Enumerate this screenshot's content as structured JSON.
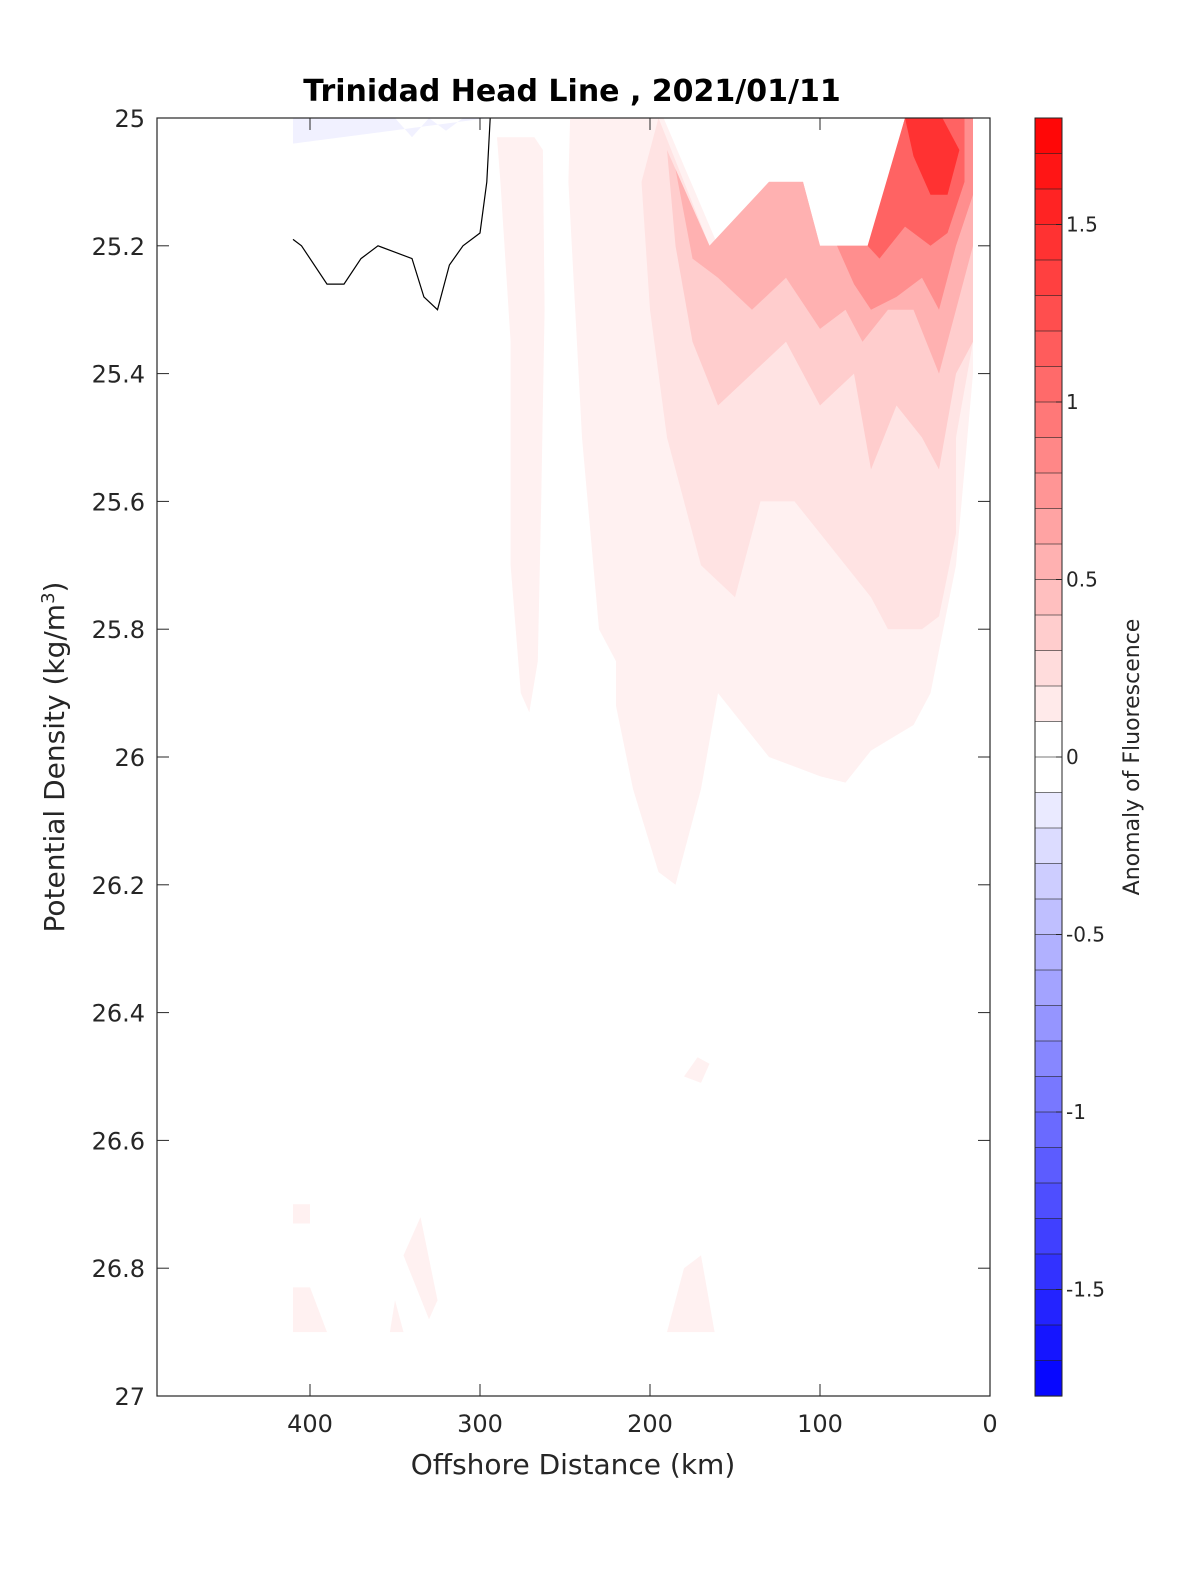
{
  "chart_data": {
    "type": "contourf",
    "title": "Trinidad Head Line , 2021/01/11",
    "xlabel": "Offshore Distance (km)",
    "ylabel_main": "Potential Density (kg/m",
    "ylabel_sup": "3",
    "ylabel_end": ")",
    "xlim": [
      490,
      0
    ],
    "ylim": [
      25,
      27
    ],
    "y_reversed": true,
    "x_ticks": [
      400,
      300,
      200,
      100,
      0
    ],
    "x_tick_labels": [
      "400",
      "300",
      "200",
      "100",
      "0"
    ],
    "y_ticks": [
      25,
      25.2,
      25.4,
      25.6,
      25.8,
      26,
      26.2,
      26.4,
      26.6,
      26.8,
      27
    ],
    "y_tick_labels": [
      "25",
      "25.2",
      "25.4",
      "25.6",
      "25.8",
      "26",
      "26.2",
      "26.4",
      "26.6",
      "26.8",
      "27"
    ],
    "grid": false,
    "colorbar": {
      "label": "Anomaly of Fluorescence",
      "range": [
        -1.8,
        1.8
      ],
      "levels": 36,
      "ticks": [
        1.5,
        1,
        0.5,
        0,
        -0.5,
        -1,
        -1.5
      ],
      "tick_labels": [
        "1.5",
        "1",
        "0.5",
        "0",
        "-0.5",
        "-1",
        "-1.5"
      ],
      "colormap": "blue-white-red",
      "low_color": "#0000ff",
      "mid_color": "#ffffff",
      "high_color": "#ff0000"
    },
    "regions": [
      {
        "level": 0.1,
        "points": [
          [
            290,
            25.03
          ],
          [
            288,
            25.1
          ],
          [
            282,
            25.35
          ],
          [
            282,
            25.7
          ],
          [
            276,
            25.9
          ],
          [
            271,
            25.93
          ],
          [
            266,
            25.85
          ],
          [
            264,
            25.6
          ],
          [
            262,
            25.3
          ],
          [
            263,
            25.05
          ],
          [
            268,
            25.03
          ]
        ]
      },
      {
        "level": 0.1,
        "points": [
          [
            247,
            25
          ],
          [
            192,
            25
          ],
          [
            160,
            25.2
          ],
          [
            130,
            25.1
          ],
          [
            115,
            25.1
          ],
          [
            100,
            25.2
          ],
          [
            70,
            25.2
          ],
          [
            50,
            25
          ],
          [
            28,
            25
          ],
          [
            10,
            25
          ],
          [
            10,
            25.4
          ],
          [
            20,
            25.7
          ],
          [
            35,
            25.9
          ],
          [
            45,
            25.95
          ],
          [
            70,
            25.99
          ],
          [
            85,
            26.04
          ],
          [
            100,
            26.03
          ],
          [
            110,
            26.02
          ],
          [
            130,
            26.0
          ],
          [
            160,
            25.9
          ],
          [
            170,
            26.05
          ],
          [
            185,
            26.2
          ],
          [
            195,
            26.18
          ],
          [
            210,
            26.05
          ],
          [
            220,
            25.92
          ],
          [
            220,
            25.85
          ],
          [
            230,
            25.8
          ],
          [
            240,
            25.5
          ],
          [
            248,
            25.1
          ]
        ]
      },
      {
        "level": 0.1,
        "points": [
          [
            165,
            26.48
          ],
          [
            172,
            26.47
          ],
          [
            180,
            26.5
          ],
          [
            170,
            26.51
          ]
        ]
      },
      {
        "level": 0.1,
        "points": [
          [
            410,
            26.7
          ],
          [
            400,
            26.7
          ],
          [
            400,
            26.73
          ],
          [
            410,
            26.73
          ]
        ]
      },
      {
        "level": 0.1,
        "points": [
          [
            410,
            26.83
          ],
          [
            400,
            26.83
          ],
          [
            390,
            26.9
          ],
          [
            410,
            26.9
          ]
        ]
      },
      {
        "level": 0.1,
        "points": [
          [
            345,
            26.78
          ],
          [
            335,
            26.72
          ],
          [
            325,
            26.85
          ],
          [
            330,
            26.88
          ],
          [
            342,
            26.8
          ]
        ]
      },
      {
        "level": 0.1,
        "points": [
          [
            350,
            26.85
          ],
          [
            345,
            26.9
          ],
          [
            353,
            26.9
          ]
        ]
      },
      {
        "level": 0.1,
        "points": [
          [
            190,
            26.9
          ],
          [
            162,
            26.9
          ],
          [
            170,
            26.78
          ],
          [
            180,
            26.8
          ]
        ]
      },
      {
        "level": -0.1,
        "points": [
          [
            410,
            25
          ],
          [
            350,
            25
          ],
          [
            340,
            25.03
          ],
          [
            330,
            25
          ],
          [
            320,
            25.02
          ],
          [
            310,
            25
          ],
          [
            300,
            25
          ],
          [
            295,
            25
          ],
          [
            410,
            25.04
          ]
        ]
      },
      {
        "level": 0.2,
        "points": [
          [
            195,
            25
          ],
          [
            165,
            25.2
          ],
          [
            130,
            25.1
          ],
          [
            110,
            25.1
          ],
          [
            100,
            25.2
          ],
          [
            70,
            25.2
          ],
          [
            50,
            25
          ],
          [
            28,
            25
          ],
          [
            10,
            25
          ],
          [
            10,
            25.35
          ],
          [
            20,
            25.5
          ],
          [
            20,
            25.65
          ],
          [
            30,
            25.78
          ],
          [
            40,
            25.8
          ],
          [
            60,
            25.8
          ],
          [
            70,
            25.75
          ],
          [
            85,
            25.7
          ],
          [
            100,
            25.65
          ],
          [
            115,
            25.6
          ],
          [
            135,
            25.6
          ],
          [
            150,
            25.75
          ],
          [
            170,
            25.7
          ],
          [
            190,
            25.5
          ],
          [
            200,
            25.3
          ],
          [
            205,
            25.1
          ]
        ]
      },
      {
        "level": 0.35,
        "points": [
          [
            190,
            25.05
          ],
          [
            165,
            25.2
          ],
          [
            130,
            25.1
          ],
          [
            110,
            25.1
          ],
          [
            100,
            25.2
          ],
          [
            70,
            25.2
          ],
          [
            50,
            25
          ],
          [
            28,
            25
          ],
          [
            10,
            25
          ],
          [
            10,
            25.35
          ],
          [
            20,
            25.4
          ],
          [
            30,
            25.55
          ],
          [
            40,
            25.5
          ],
          [
            55,
            25.45
          ],
          [
            70,
            25.55
          ],
          [
            80,
            25.4
          ],
          [
            100,
            25.45
          ],
          [
            120,
            25.35
          ],
          [
            140,
            25.4
          ],
          [
            160,
            25.45
          ],
          [
            175,
            25.35
          ],
          [
            185,
            25.2
          ]
        ]
      },
      {
        "level": 0.55,
        "points": [
          [
            185,
            25.08
          ],
          [
            165,
            25.2
          ],
          [
            130,
            25.1
          ],
          [
            110,
            25.1
          ],
          [
            100,
            25.2
          ],
          [
            70,
            25.2
          ],
          [
            50,
            25
          ],
          [
            28,
            25
          ],
          [
            10,
            25
          ],
          [
            10,
            25.2
          ],
          [
            20,
            25.3
          ],
          [
            30,
            25.4
          ],
          [
            45,
            25.3
          ],
          [
            60,
            25.3
          ],
          [
            75,
            25.35
          ],
          [
            85,
            25.3
          ],
          [
            100,
            25.33
          ],
          [
            120,
            25.25
          ],
          [
            140,
            25.3
          ],
          [
            160,
            25.25
          ],
          [
            175,
            25.22
          ]
        ]
      },
      {
        "level": 0.8,
        "points": [
          [
            90,
            25.2
          ],
          [
            70,
            25.2
          ],
          [
            50,
            25
          ],
          [
            28,
            25
          ],
          [
            10,
            25
          ],
          [
            10,
            25.12
          ],
          [
            20,
            25.2
          ],
          [
            30,
            25.3
          ],
          [
            40,
            25.25
          ],
          [
            55,
            25.28
          ],
          [
            70,
            25.3
          ],
          [
            80,
            25.26
          ]
        ]
      },
      {
        "level": 1.1,
        "points": [
          [
            72,
            25.2
          ],
          [
            50,
            25
          ],
          [
            28,
            25
          ],
          [
            15,
            25
          ],
          [
            15,
            25.1
          ],
          [
            25,
            25.18
          ],
          [
            35,
            25.2
          ],
          [
            50,
            25.17
          ],
          [
            65,
            25.22
          ]
        ]
      },
      {
        "level": 1.45,
        "points": [
          [
            50,
            25
          ],
          [
            28,
            25
          ],
          [
            18,
            25.05
          ],
          [
            25,
            25.12
          ],
          [
            35,
            25.12
          ],
          [
            45,
            25.06
          ]
        ]
      }
    ],
    "contour_zero_line": [
      [
        410,
        25.19
      ],
      [
        405,
        25.2
      ],
      [
        390,
        25.26
      ],
      [
        380,
        25.26
      ],
      [
        370,
        25.22
      ],
      [
        360,
        25.2
      ],
      [
        350,
        25.21
      ],
      [
        340,
        25.22
      ],
      [
        333,
        25.28
      ],
      [
        325,
        25.3
      ],
      [
        318,
        25.23
      ],
      [
        310,
        25.2
      ],
      [
        300,
        25.18
      ],
      [
        296,
        25.1
      ],
      [
        294,
        25
      ]
    ]
  }
}
